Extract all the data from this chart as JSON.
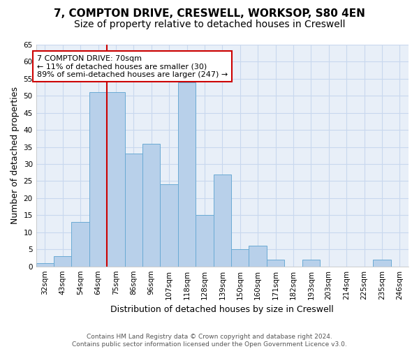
{
  "title_line1": "7, COMPTON DRIVE, CRESWELL, WORKSOP, S80 4EN",
  "title_line2": "Size of property relative to detached houses in Creswell",
  "xlabel": "Distribution of detached houses by size in Creswell",
  "ylabel": "Number of detached properties",
  "categories": [
    "32sqm",
    "43sqm",
    "54sqm",
    "64sqm",
    "75sqm",
    "86sqm",
    "96sqm",
    "107sqm",
    "118sqm",
    "128sqm",
    "139sqm",
    "150sqm",
    "160sqm",
    "171sqm",
    "182sqm",
    "193sqm",
    "203sqm",
    "214sqm",
    "225sqm",
    "235sqm",
    "246sqm"
  ],
  "values": [
    1,
    3,
    13,
    51,
    51,
    33,
    36,
    24,
    54,
    15,
    27,
    5,
    6,
    2,
    0,
    2,
    0,
    0,
    0,
    2,
    0
  ],
  "bar_color": "#b8d0ea",
  "bar_edge_color": "#6aaad4",
  "grid_color": "#c8d8ee",
  "background_color": "#e8eff8",
  "annotation_text": "7 COMPTON DRIVE: 70sqm\n← 11% of detached houses are smaller (30)\n89% of semi-detached houses are larger (247) →",
  "annotation_box_color": "white",
  "annotation_border_color": "#cc0000",
  "vline_color": "#cc0000",
  "vline_x": 3.5,
  "ylim": [
    0,
    65
  ],
  "yticks": [
    0,
    5,
    10,
    15,
    20,
    25,
    30,
    35,
    40,
    45,
    50,
    55,
    60,
    65
  ],
  "footnote": "Contains HM Land Registry data © Crown copyright and database right 2024.\nContains public sector information licensed under the Open Government Licence v3.0.",
  "title_fontsize": 11,
  "subtitle_fontsize": 10,
  "xlabel_fontsize": 9,
  "ylabel_fontsize": 9,
  "tick_fontsize": 7.5,
  "annotation_fontsize": 8,
  "footnote_fontsize": 6.5
}
